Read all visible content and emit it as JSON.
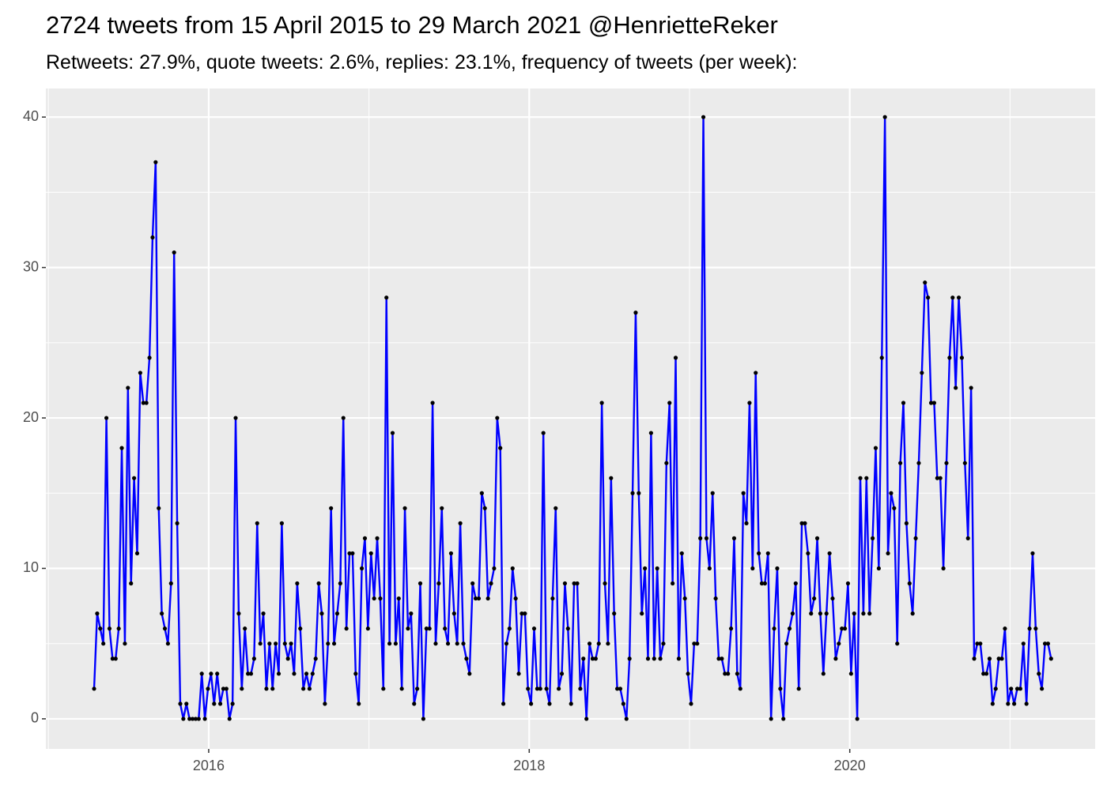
{
  "chart_data": {
    "type": "line",
    "title": "2724 tweets from 15 April 2015 to 29 March 2021 @HenrietteReker",
    "subtitle": "Retweets: 27.9%, quote tweets: 2.6%, replies: 23.1%, frequency of tweets (per week):",
    "color": "#0000ff",
    "marker_color": "#000000",
    "grid": true,
    "xlim": [
      2014.984,
      2021.531
    ],
    "ylim": [
      -2,
      41.9
    ],
    "xticks": [
      2016,
      2018,
      2020
    ],
    "yticks": [
      0,
      10,
      20,
      30,
      40
    ],
    "x_minor_ticks": [
      2015,
      2017,
      2019,
      2021
    ],
    "y_minor_ticks": [
      5,
      15,
      25,
      35
    ],
    "x": [
      2015.285,
      2015.3042,
      2015.3234,
      2015.3426,
      2015.3618,
      2015.381,
      2015.4002,
      2015.4194,
      2015.4386,
      2015.4578,
      2015.477,
      2015.4962,
      2015.5154,
      2015.5346,
      2015.5538,
      2015.573,
      2015.5922,
      2015.6114,
      2015.6306,
      2015.6498,
      2015.669,
      2015.6882,
      2015.7074,
      2015.7266,
      2015.7458,
      2015.765,
      2015.7842,
      2015.8034,
      2015.8226,
      2015.8418,
      2015.861,
      2015.8802,
      2015.8994,
      2015.9186,
      2015.9378,
      2015.957,
      2015.9762,
      2015.9954,
      2016.0146,
      2016.0338,
      2016.053,
      2016.0722,
      2016.0914,
      2016.1106,
      2016.1298,
      2016.149,
      2016.1682,
      2016.1874,
      2016.2066,
      2016.2258,
      2016.245,
      2016.2642,
      2016.2834,
      2016.3026,
      2016.3218,
      2016.341,
      2016.3602,
      2016.3794,
      2016.3986,
      2016.4178,
      2016.437,
      2016.4562,
      2016.4754,
      2016.4946,
      2016.5138,
      2016.533,
      2016.5522,
      2016.5714,
      2016.5906,
      2016.6098,
      2016.629,
      2016.6482,
      2016.6674,
      2016.6866,
      2016.7058,
      2016.725,
      2016.7442,
      2016.7634,
      2016.7826,
      2016.8018,
      2016.821,
      2016.8402,
      2016.8594,
      2016.8786,
      2016.8978,
      2016.917,
      2016.9362,
      2016.9554,
      2016.9746,
      2016.9938,
      2017.013,
      2017.0322,
      2017.0514,
      2017.0706,
      2017.0898,
      2017.109,
      2017.1282,
      2017.1474,
      2017.1666,
      2017.1858,
      2017.205,
      2017.2242,
      2017.2434,
      2017.2626,
      2017.2818,
      2017.301,
      2017.3202,
      2017.3394,
      2017.3586,
      2017.3778,
      2017.397,
      2017.4162,
      2017.4354,
      2017.4546,
      2017.4738,
      2017.493,
      2017.5122,
      2017.5314,
      2017.5506,
      2017.5698,
      2017.589,
      2017.6082,
      2017.6274,
      2017.6466,
      2017.6658,
      2017.685,
      2017.7042,
      2017.7234,
      2017.7426,
      2017.7618,
      2017.781,
      2017.8002,
      2017.8194,
      2017.8386,
      2017.8578,
      2017.877,
      2017.8962,
      2017.9154,
      2017.9346,
      2017.9538,
      2017.973,
      2017.9922,
      2018.0114,
      2018.0306,
      2018.0498,
      2018.069,
      2018.0882,
      2018.1074,
      2018.1266,
      2018.1458,
      2018.165,
      2018.1842,
      2018.2034,
      2018.2226,
      2018.2418,
      2018.261,
      2018.2802,
      2018.2994,
      2018.3186,
      2018.3378,
      2018.357,
      2018.3762,
      2018.3954,
      2018.4146,
      2018.4338,
      2018.453,
      2018.4722,
      2018.4914,
      2018.5106,
      2018.5298,
      2018.549,
      2018.5682,
      2018.5874,
      2018.6066,
      2018.6258,
      2018.645,
      2018.6642,
      2018.6834,
      2018.7026,
      2018.7218,
      2018.741,
      2018.7602,
      2018.7794,
      2018.7986,
      2018.8178,
      2018.837,
      2018.8562,
      2018.8754,
      2018.8946,
      2018.9138,
      2018.933,
      2018.9522,
      2018.9714,
      2018.9906,
      2019.0098,
      2019.029,
      2019.0482,
      2019.0674,
      2019.0866,
      2019.1058,
      2019.125,
      2019.1442,
      2019.1634,
      2019.1826,
      2019.2018,
      2019.221,
      2019.2402,
      2019.2594,
      2019.2786,
      2019.2978,
      2019.317,
      2019.3362,
      2019.3554,
      2019.3746,
      2019.3938,
      2019.413,
      2019.4322,
      2019.4514,
      2019.4706,
      2019.4898,
      2019.509,
      2019.5282,
      2019.5474,
      2019.5666,
      2019.5858,
      2019.605,
      2019.6242,
      2019.6434,
      2019.6626,
      2019.6818,
      2019.701,
      2019.7202,
      2019.7394,
      2019.7586,
      2019.7778,
      2019.797,
      2019.8162,
      2019.8354,
      2019.8546,
      2019.8738,
      2019.893,
      2019.9122,
      2019.9314,
      2019.9506,
      2019.9698,
      2019.989,
      2020.0082,
      2020.0274,
      2020.0466,
      2020.0658,
      2020.085,
      2020.1042,
      2020.1234,
      2020.1426,
      2020.1618,
      2020.181,
      2020.2002,
      2020.2194,
      2020.2386,
      2020.2578,
      2020.277,
      2020.2962,
      2020.3154,
      2020.3346,
      2020.3538,
      2020.373,
      2020.3922,
      2020.4114,
      2020.4306,
      2020.4498,
      2020.469,
      2020.4882,
      2020.5074,
      2020.5266,
      2020.5458,
      2020.565,
      2020.5842,
      2020.6034,
      2020.6226,
      2020.6418,
      2020.661,
      2020.6802,
      2020.6994,
      2020.7186,
      2020.7378,
      2020.757,
      2020.7762,
      2020.7954,
      2020.8146,
      2020.8338,
      2020.853,
      2020.8722,
      2020.8914,
      2020.9106,
      2020.9298,
      2020.949,
      2020.9682,
      2020.9874,
      2021.0066,
      2021.0258,
      2021.045,
      2021.0642,
      2021.0834,
      2021.1026,
      2021.1218,
      2021.141,
      2021.1602,
      2021.1794,
      2021.1986,
      2021.2178,
      2021.237,
      2021.2562
    ],
    "values": [
      2,
      7,
      6,
      5,
      20,
      6,
      4,
      4,
      6,
      18,
      5,
      22,
      9,
      16,
      11,
      23,
      21,
      21,
      24,
      32,
      37,
      14,
      7,
      6,
      5,
      9,
      31,
      13,
      1,
      0,
      1,
      0,
      0,
      0,
      0,
      3,
      0,
      2,
      3,
      1,
      3,
      1,
      2,
      2,
      0,
      1,
      20,
      7,
      2,
      6,
      3,
      3,
      4,
      13,
      5,
      7,
      2,
      5,
      2,
      5,
      3,
      13,
      5,
      4,
      5,
      3,
      9,
      6,
      2,
      3,
      2,
      3,
      4,
      9,
      7,
      1,
      5,
      14,
      5,
      7,
      9,
      20,
      6,
      11,
      11,
      3,
      1,
      10,
      12,
      6,
      11,
      8,
      12,
      8,
      2,
      28,
      5,
      19,
      5,
      8,
      2,
      14,
      6,
      7,
      1,
      2,
      9,
      0,
      6,
      6,
      21,
      5,
      9,
      14,
      6,
      5,
      11,
      7,
      5,
      13,
      5,
      4,
      3,
      9,
      8,
      8,
      15,
      14,
      8,
      9,
      10,
      20,
      18,
      1,
      5,
      6,
      10,
      8,
      3,
      7,
      7,
      2,
      1,
      6,
      2,
      2,
      19,
      2,
      1,
      8,
      14,
      2,
      3,
      9,
      6,
      1,
      9,
      9,
      2,
      4,
      0,
      5,
      4,
      4,
      5,
      21,
      9,
      5,
      16,
      7,
      2,
      2,
      1,
      0,
      4,
      15,
      27,
      15,
      7,
      10,
      4,
      19,
      4,
      10,
      4,
      5,
      17,
      21,
      9,
      24,
      4,
      11,
      8,
      3,
      1,
      5,
      5,
      12,
      40,
      12,
      10,
      15,
      8,
      4,
      4,
      3,
      3,
      6,
      12,
      3,
      2,
      15,
      13,
      21,
      10,
      23,
      11,
      9,
      9,
      11,
      0,
      6,
      10,
      2,
      0,
      5,
      6,
      7,
      9,
      2,
      13,
      13,
      11,
      7,
      8,
      12,
      7,
      3,
      7,
      11,
      8,
      4,
      5,
      6,
      6,
      9,
      3,
      7,
      0,
      16,
      7,
      16,
      7,
      12,
      18,
      10,
      24,
      40,
      11,
      15,
      14,
      5,
      17,
      21,
      13,
      9,
      7,
      12,
      17,
      23,
      29,
      28,
      21,
      21,
      16,
      16,
      10,
      17,
      24,
      28,
      22,
      28,
      24,
      17,
      12,
      22,
      4,
      5,
      5,
      3,
      3,
      4,
      1,
      2,
      4,
      4,
      6,
      1,
      2,
      1,
      2,
      2,
      5,
      1,
      6,
      11,
      6,
      3,
      2,
      5,
      5,
      4
    ]
  }
}
